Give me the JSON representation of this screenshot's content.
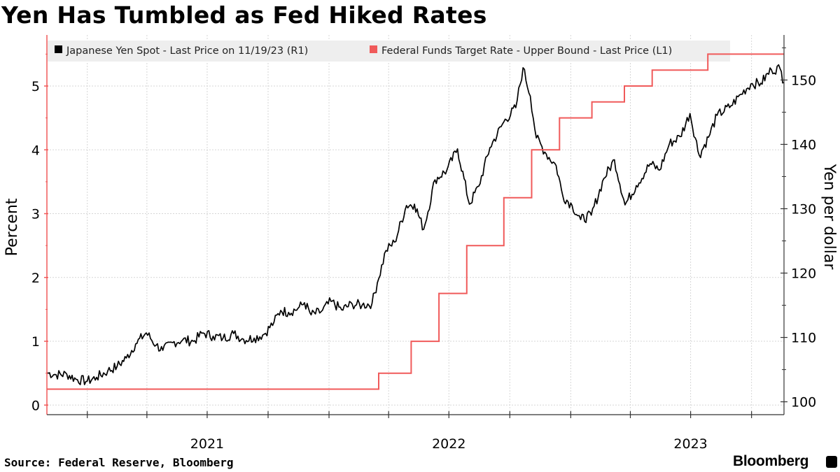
{
  "title": "Yen Has Tumbled as Fed Hiked Rates",
  "source": "Source: Federal Reserve, Bloomberg",
  "brand": "Bloomberg",
  "colors": {
    "yen": "#000000",
    "fed": "#f05a5a",
    "grid": "#d6d6d6",
    "legend_bg": "#eeeeee"
  },
  "chart_data": {
    "type": "line",
    "title": "Yen Has Tumbled as Fed Hiked Rates",
    "x_range": [
      "2020-11-01",
      "2023-11-19"
    ],
    "x_ticks": [
      "2021",
      "2022",
      "2023"
    ],
    "legend": [
      "Japanese Yen Spot - Last Price on 11/19/23 (R1)",
      "Federal Funds Target Rate - Upper Bound - Last Price (L1)"
    ],
    "left_axis": {
      "label": "Percent",
      "range": [
        -0.15,
        5.8
      ],
      "ticks": [
        0,
        1,
        2,
        3,
        4,
        5
      ]
    },
    "right_axis": {
      "label": "Yen per dollar",
      "range": [
        98,
        157
      ],
      "ticks": [
        100,
        110,
        120,
        130,
        140,
        150
      ]
    },
    "series": [
      {
        "name": "Japanese Yen Spot - Last Price on 11/19/23 (R1)",
        "axis": "right",
        "points": [
          [
            "2020-11-01",
            104.5
          ],
          [
            "2020-11-15",
            104.2
          ],
          [
            "2020-12-01",
            104.3
          ],
          [
            "2020-12-15",
            103.5
          ],
          [
            "2021-01-01",
            103.2
          ],
          [
            "2021-01-15",
            103.8
          ],
          [
            "2021-02-01",
            104.8
          ],
          [
            "2021-02-15",
            105.5
          ],
          [
            "2021-03-01",
            106.8
          ],
          [
            "2021-03-15",
            109.0
          ],
          [
            "2021-03-31",
            110.7
          ],
          [
            "2021-04-15",
            108.8
          ],
          [
            "2021-04-25",
            108.0
          ],
          [
            "2021-05-10",
            109.2
          ],
          [
            "2021-05-25",
            109.6
          ],
          [
            "2021-06-10",
            109.4
          ],
          [
            "2021-06-25",
            110.7
          ],
          [
            "2021-07-10",
            110.2
          ],
          [
            "2021-07-25",
            109.9
          ],
          [
            "2021-08-10",
            110.6
          ],
          [
            "2021-08-25",
            109.7
          ],
          [
            "2021-09-10",
            109.9
          ],
          [
            "2021-09-25",
            110.5
          ],
          [
            "2021-10-10",
            112.4
          ],
          [
            "2021-10-20",
            114.2
          ],
          [
            "2021-11-01",
            113.9
          ],
          [
            "2021-11-15",
            114.5
          ],
          [
            "2021-11-25",
            115.4
          ],
          [
            "2021-12-05",
            113.5
          ],
          [
            "2021-12-20",
            114.0
          ],
          [
            "2022-01-04",
            115.6
          ],
          [
            "2022-01-20",
            114.3
          ],
          [
            "2022-02-05",
            115.2
          ],
          [
            "2022-02-20",
            115.0
          ],
          [
            "2022-03-07",
            115.3
          ],
          [
            "2022-03-15",
            118.5
          ],
          [
            "2022-03-28",
            123.5
          ],
          [
            "2022-04-10",
            124.8
          ],
          [
            "2022-04-28",
            130.5
          ],
          [
            "2022-05-10",
            130.7
          ],
          [
            "2022-05-24",
            126.8
          ],
          [
            "2022-06-10",
            134.5
          ],
          [
            "2022-06-28",
            136.0
          ],
          [
            "2022-07-14",
            139.3
          ],
          [
            "2022-08-01",
            130.7
          ],
          [
            "2022-08-15",
            133.5
          ],
          [
            "2022-09-01",
            139.5
          ],
          [
            "2022-09-22",
            143.5
          ],
          [
            "2022-10-10",
            145.7
          ],
          [
            "2022-10-21",
            151.9
          ],
          [
            "2022-11-01",
            147.5
          ],
          [
            "2022-11-10",
            141.0
          ],
          [
            "2022-11-25",
            138.5
          ],
          [
            "2022-12-10",
            136.7
          ],
          [
            "2022-12-20",
            132.0
          ],
          [
            "2023-01-03",
            130.5
          ],
          [
            "2023-01-16",
            128.3
          ],
          [
            "2023-02-01",
            129.0
          ],
          [
            "2023-02-20",
            134.7
          ],
          [
            "2023-03-08",
            137.6
          ],
          [
            "2023-03-24",
            130.6
          ],
          [
            "2023-04-10",
            133.6
          ],
          [
            "2023-05-01",
            137.0
          ],
          [
            "2023-05-15",
            136.0
          ],
          [
            "2023-05-30",
            140.1
          ],
          [
            "2023-06-15",
            141.2
          ],
          [
            "2023-06-30",
            144.8
          ],
          [
            "2023-07-14",
            138.3
          ],
          [
            "2023-07-28",
            141.1
          ],
          [
            "2023-08-10",
            144.5
          ],
          [
            "2023-08-31",
            146.0
          ],
          [
            "2023-09-15",
            147.8
          ],
          [
            "2023-09-30",
            149.4
          ],
          [
            "2023-10-15",
            149.5
          ],
          [
            "2023-10-31",
            151.6
          ],
          [
            "2023-11-13",
            151.8
          ],
          [
            "2023-11-19",
            149.6
          ]
        ]
      },
      {
        "name": "Federal Funds Target Rate - Upper Bound - Last Price (L1)",
        "axis": "left",
        "step": true,
        "points": [
          [
            "2020-11-01",
            0.25
          ],
          [
            "2022-03-17",
            0.5
          ],
          [
            "2022-05-05",
            1.0
          ],
          [
            "2022-06-16",
            1.75
          ],
          [
            "2022-07-28",
            2.5
          ],
          [
            "2022-09-22",
            3.25
          ],
          [
            "2022-11-03",
            4.0
          ],
          [
            "2022-12-15",
            4.5
          ],
          [
            "2023-02-02",
            4.75
          ],
          [
            "2023-03-23",
            5.0
          ],
          [
            "2023-05-04",
            5.25
          ],
          [
            "2023-07-27",
            5.5
          ],
          [
            "2023-11-19",
            5.5
          ]
        ]
      }
    ]
  }
}
